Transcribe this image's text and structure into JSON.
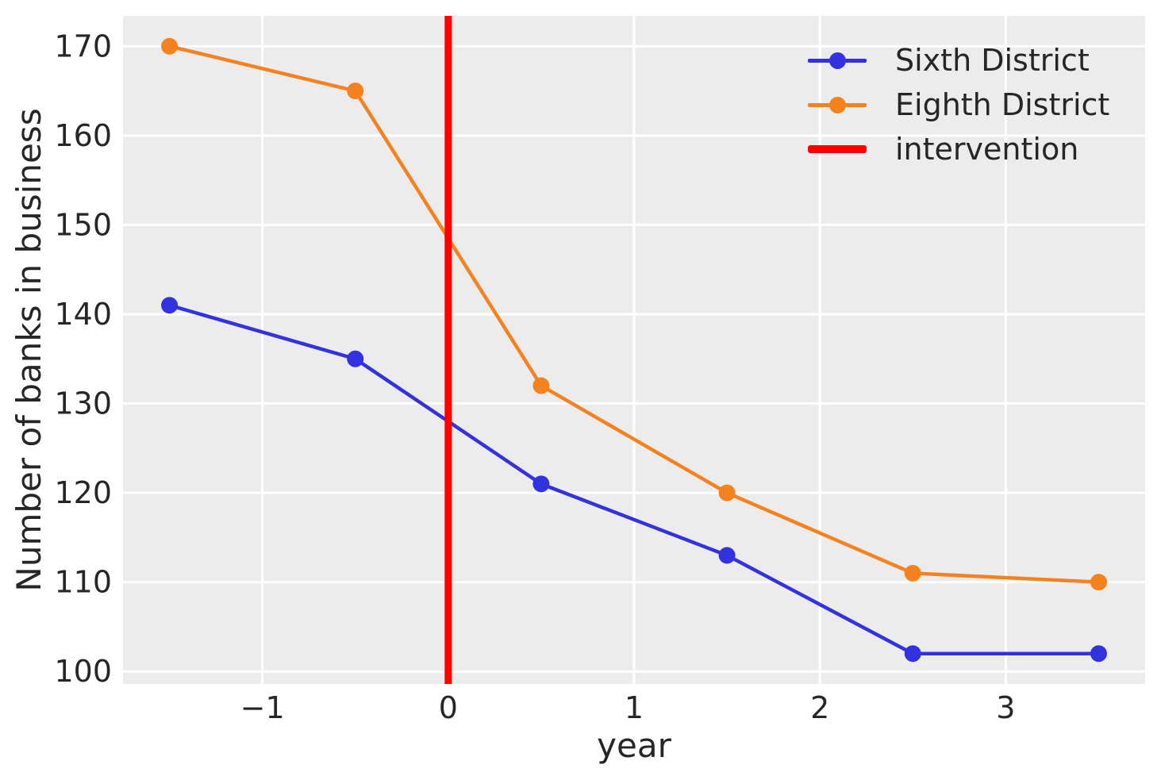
{
  "chart_data": {
    "type": "line",
    "xlabel": "year",
    "ylabel": "Number of banks in business",
    "x": [
      -1.5,
      -0.5,
      0.5,
      1.5,
      2.5,
      3.5
    ],
    "series": [
      {
        "name": "Sixth District",
        "color": "#3232e0",
        "marker": "circle",
        "values": [
          141,
          135,
          121,
          113,
          102,
          102
        ]
      },
      {
        "name": "Eighth District",
        "color": "#f5821f",
        "marker": "circle",
        "values": [
          170,
          165,
          132,
          120,
          111,
          110
        ]
      }
    ],
    "intervention_line": {
      "label": "intervention",
      "x": 0,
      "color": "#ff0000"
    },
    "xticks": [
      -1,
      0,
      1,
      2,
      3
    ],
    "xtick_labels": [
      "−1",
      "0",
      "1",
      "2",
      "3"
    ],
    "yticks": [
      100,
      110,
      120,
      130,
      140,
      150,
      160,
      170
    ],
    "ytick_labels": [
      "100",
      "110",
      "120",
      "130",
      "140",
      "150",
      "160",
      "170"
    ],
    "xlim": [
      -1.75,
      3.75
    ],
    "ylim": [
      98.6,
      173.4
    ],
    "grid": true,
    "legend": {
      "position": "upper right",
      "frame": false
    },
    "colors": {
      "figure_background": "#ffffff",
      "plot_background": "#ececec",
      "gridline": "#ffffff",
      "text": "#262626"
    }
  }
}
